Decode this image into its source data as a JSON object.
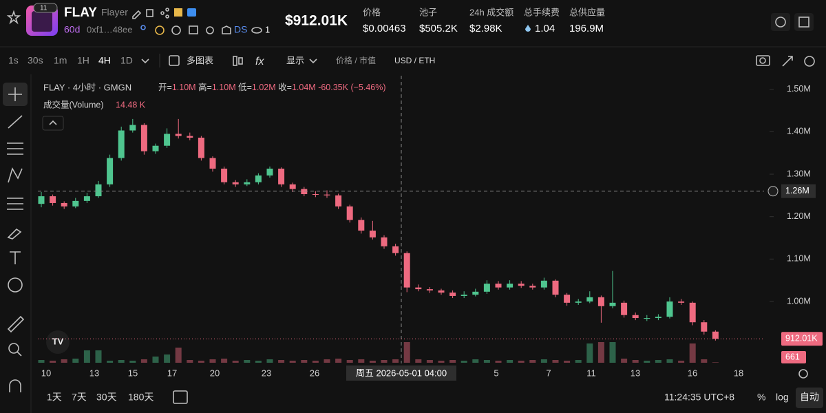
{
  "header": {
    "badge": "11",
    "symbol": "FLAY",
    "name": "Flayer",
    "age": "60d",
    "address": "0xf1…48ee",
    "ds": "DS",
    "watchers": "1",
    "market_cap": "$912.01K",
    "stats": [
      {
        "label": "价格",
        "value": "$0.00463"
      },
      {
        "label": "池子",
        "value": "$505.2K"
      },
      {
        "label": "24h 成交额",
        "value": "$2.98K"
      },
      {
        "label": "总手续费",
        "value": "1.04"
      },
      {
        "label": "总供应量",
        "value": "196.9M"
      }
    ]
  },
  "toolbar": {
    "intervals": [
      "1s",
      "30s",
      "1m",
      "1H",
      "4H",
      "1D"
    ],
    "multi_chart": "多图表",
    "display": "显示",
    "price_mcap": "价格 / 市值",
    "currency": "USD / ETH"
  },
  "chart_data": {
    "type": "candlestick",
    "title": "FLAY · 4小时 · GMGN",
    "ohlc_legend": [
      {
        "label": "开=",
        "value": "1.10M"
      },
      {
        "label": "高=",
        "value": "1.10M"
      },
      {
        "label": "低=",
        "value": "1.02M"
      },
      {
        "label": "收=",
        "value": "1.04M"
      }
    ],
    "change": "-60.35K (−5.46%)",
    "volume_title": "成交量(Volume)",
    "volume_value": "14.48 K",
    "up_color": "#4fc58f",
    "down_color": "#ee6a80",
    "ylim": [
      854000,
      1532000
    ],
    "yticks": [
      {
        "value": 1000000,
        "label": "1.00M"
      },
      {
        "value": 1100000,
        "label": "1.10M"
      },
      {
        "value": 1200000,
        "label": "1.20M"
      },
      {
        "value": 1300000,
        "label": "1.30M"
      },
      {
        "value": 1400000,
        "label": "1.40M"
      },
      {
        "value": 1500000,
        "label": "1.50M"
      }
    ],
    "crosshair_price": {
      "value": 1260000,
      "label": "1.26M"
    },
    "last_price": {
      "value": 912010,
      "label": "912.01K"
    },
    "crosshair_time": "周五 2026-05-01  04:00",
    "x_labels": [
      "10",
      "13",
      "15",
      "17",
      "20",
      "23",
      "26",
      "5",
      "7",
      "11",
      "13",
      "16",
      "18"
    ],
    "vlim": [
      0,
      30000
    ],
    "candles": [
      [
        1230000,
        1258000,
        1222000,
        1248000
      ],
      [
        1248000,
        1252000,
        1226000,
        1232000
      ],
      [
        1232000,
        1236000,
        1218000,
        1224000
      ],
      [
        1224000,
        1244000,
        1220000,
        1237000
      ],
      [
        1237000,
        1256000,
        1232000,
        1248000
      ],
      [
        1248000,
        1284000,
        1244000,
        1276000
      ],
      [
        1276000,
        1346000,
        1270000,
        1338000
      ],
      [
        1338000,
        1412000,
        1332000,
        1403000
      ],
      [
        1403000,
        1430000,
        1398000,
        1416000
      ],
      [
        1416000,
        1420000,
        1346000,
        1354000
      ],
      [
        1354000,
        1372000,
        1348000,
        1367000
      ],
      [
        1367000,
        1408000,
        1362000,
        1395000
      ],
      [
        1395000,
        1430000,
        1384000,
        1390000
      ],
      [
        1390000,
        1398000,
        1380000,
        1386000
      ],
      [
        1386000,
        1390000,
        1332000,
        1338000
      ],
      [
        1338000,
        1342000,
        1306000,
        1313000
      ],
      [
        1313000,
        1318000,
        1276000,
        1281000
      ],
      [
        1281000,
        1286000,
        1270000,
        1276000
      ],
      [
        1276000,
        1288000,
        1272000,
        1281000
      ],
      [
        1281000,
        1302000,
        1276000,
        1297000
      ],
      [
        1297000,
        1318000,
        1292000,
        1313000
      ],
      [
        1313000,
        1316000,
        1270000,
        1276000
      ],
      [
        1276000,
        1280000,
        1258000,
        1265000
      ],
      [
        1265000,
        1270000,
        1248000,
        1253000
      ],
      [
        1253000,
        1260000,
        1246000,
        1252000
      ],
      [
        1252000,
        1262000,
        1244000,
        1250000
      ],
      [
        1250000,
        1254000,
        1218000,
        1224000
      ],
      [
        1224000,
        1228000,
        1186000,
        1192000
      ],
      [
        1192000,
        1198000,
        1160000,
        1167000
      ],
      [
        1167000,
        1190000,
        1146000,
        1151000
      ],
      [
        1151000,
        1156000,
        1124000,
        1130000
      ],
      [
        1130000,
        1136000,
        1108000,
        1114000
      ],
      [
        1114000,
        1118000,
        1022000,
        1033000
      ],
      [
        1033000,
        1040000,
        1024000,
        1029000
      ],
      [
        1029000,
        1034000,
        1020000,
        1026000
      ],
      [
        1026000,
        1030000,
        1016000,
        1021000
      ],
      [
        1021000,
        1026000,
        1008000,
        1013000
      ],
      [
        1013000,
        1024000,
        1008000,
        1016000
      ],
      [
        1016000,
        1030000,
        1012000,
        1023000
      ],
      [
        1023000,
        1050000,
        1018000,
        1042000
      ],
      [
        1042000,
        1048000,
        1028000,
        1033000
      ],
      [
        1033000,
        1050000,
        1028000,
        1042000
      ],
      [
        1042000,
        1048000,
        1032000,
        1037000
      ],
      [
        1037000,
        1042000,
        1028000,
        1033000
      ],
      [
        1033000,
        1056000,
        1028000,
        1049000
      ],
      [
        1049000,
        1052000,
        1010000,
        1016000
      ],
      [
        1016000,
        1020000,
        990000,
        997000
      ],
      [
        997000,
        1006000,
        992000,
        1000000
      ],
      [
        1000000,
        1024000,
        996000,
        1010000
      ],
      [
        1010000,
        1014000,
        950000,
        989000
      ],
      [
        989000,
        1072000,
        984000,
        997000
      ],
      [
        997000,
        1002000,
        962000,
        968000
      ],
      [
        968000,
        974000,
        956000,
        961000
      ],
      [
        961000,
        968000,
        954000,
        961000
      ],
      [
        961000,
        970000,
        956000,
        964000
      ],
      [
        964000,
        1010000,
        960000,
        1000000
      ],
      [
        1000000,
        1006000,
        992000,
        997000
      ],
      [
        997000,
        1000000,
        944000,
        951000
      ],
      [
        951000,
        956000,
        922000,
        929000
      ],
      [
        929000,
        932000,
        908000,
        912010
      ]
    ],
    "volume": [
      4000,
      3000,
      5000,
      6000,
      18000,
      18000,
      3000,
      4000,
      3000,
      5000,
      9000,
      12000,
      22000,
      4000,
      3000,
      5000,
      6000,
      3000,
      4000,
      3000,
      5000,
      4000,
      3000,
      4000,
      3000,
      5000,
      6000,
      4000,
      5000,
      3000,
      4000,
      5000,
      30000,
      5000,
      4000,
      3000,
      4000,
      3000,
      5000,
      4000,
      3000,
      4000,
      3000,
      4000,
      5000,
      4000,
      3000,
      4000,
      28000,
      30000,
      30000,
      6000,
      4000,
      3000,
      4000,
      5000,
      3000,
      28000,
      5000,
      661
    ]
  },
  "footer": {
    "ranges": [
      "1天",
      "7天",
      "30天",
      "180天"
    ],
    "clock": "11:24:35 UTC+8",
    "percent": "%",
    "log": "log",
    "auto": "自动"
  }
}
